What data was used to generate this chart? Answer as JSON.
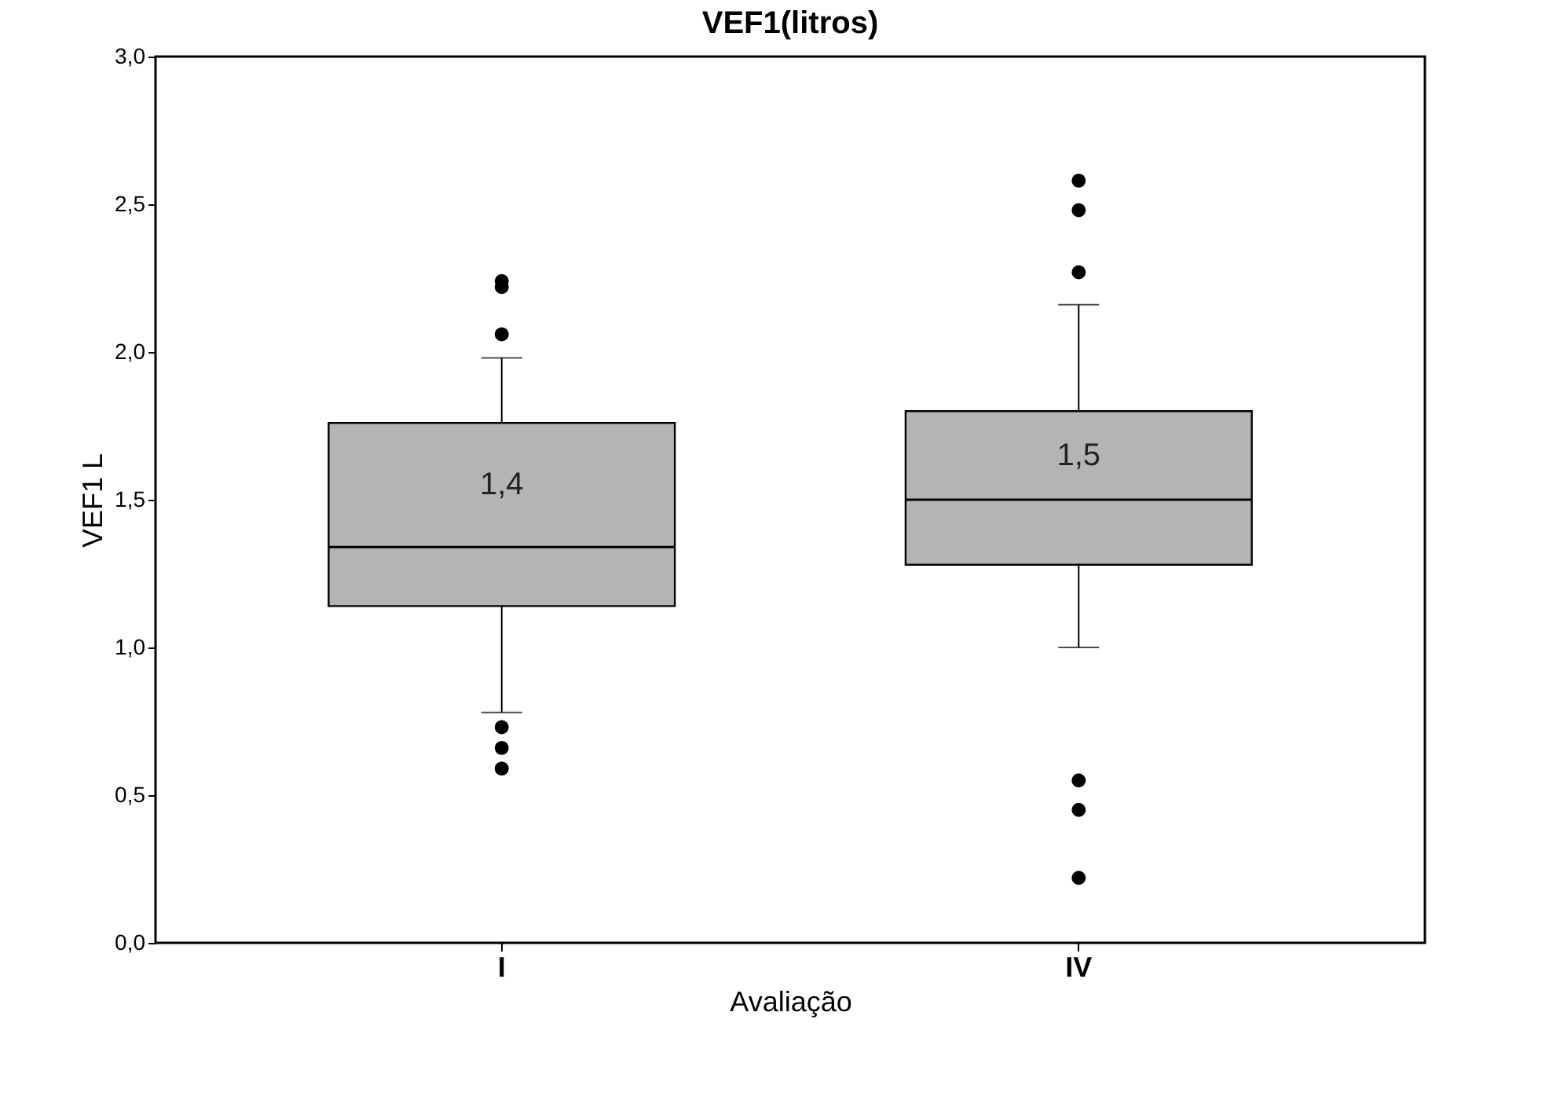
{
  "chart_data": {
    "type": "box",
    "title": "VEF1(litros)",
    "xlabel": "Avaliação",
    "ylabel": "VEF1 L",
    "categories": [
      "I",
      "IV"
    ],
    "series": [
      {
        "color": "#b4b4b4",
        "boxes": [
          {
            "low": 0.78,
            "q1": 1.14,
            "median": 1.34,
            "q3": 1.76,
            "high": 1.98,
            "outliers": [
              2.24,
              2.22,
              2.06,
              0.73,
              0.66,
              0.59
            ]
          },
          {
            "low": 1.0,
            "q1": 1.28,
            "median": 1.5,
            "q3": 1.8,
            "high": 2.16,
            "outliers": [
              2.58,
              2.48,
              2.27,
              0.55,
              0.45,
              0.22
            ]
          }
        ]
      }
    ],
    "annotations": [
      "1,4",
      "1,5"
    ],
    "ylim": [
      0,
      3
    ],
    "yticks": [
      {
        "value": 0,
        "label": "0,0"
      },
      {
        "value": 0.5,
        "label": "0,5"
      },
      {
        "value": 1,
        "label": "1,0"
      },
      {
        "value": 1.5,
        "label": "1,5"
      },
      {
        "value": 2,
        "label": "2,0"
      },
      {
        "value": 2.5,
        "label": "2,5"
      },
      {
        "value": 3,
        "label": "3,0"
      }
    ],
    "grid": false
  }
}
